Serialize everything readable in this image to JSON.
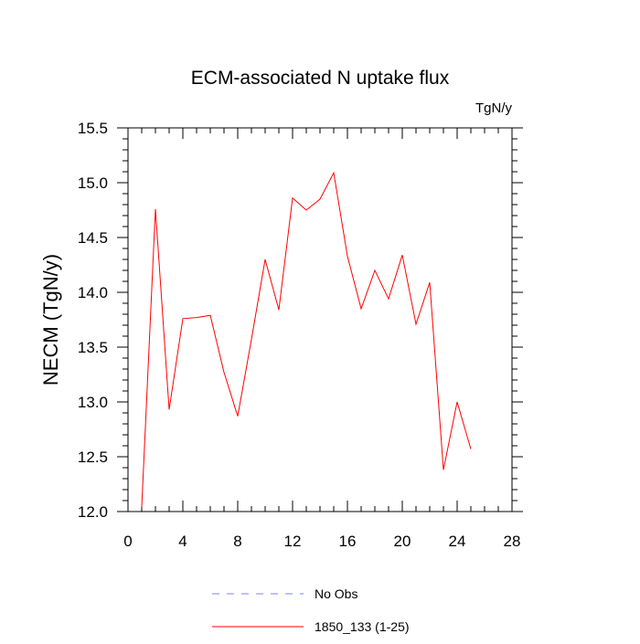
{
  "chart_data": {
    "type": "line",
    "title": "ECM-associated N uptake flux",
    "units_label": "TgN/y",
    "ylabel": "NECM  (TgN/y)",
    "xlabel": "",
    "xlim": [
      0,
      28
    ],
    "ylim": [
      12.0,
      15.5
    ],
    "x_ticks": [
      0,
      4,
      8,
      12,
      16,
      20,
      24,
      28
    ],
    "x_tick_labels": [
      "0",
      "4",
      "8",
      "12",
      "16",
      "20",
      "24",
      "28"
    ],
    "y_ticks": [
      12.0,
      12.5,
      13.0,
      13.5,
      14.0,
      14.5,
      15.0,
      15.5
    ],
    "y_tick_labels": [
      "12.0",
      "12.5",
      "13.0",
      "13.5",
      "14.0",
      "14.5",
      "15.0",
      "15.5"
    ],
    "grid": false,
    "legend_position": "bottom",
    "series": [
      {
        "name": "No Obs",
        "color": "#7f7fff",
        "dash": "dashed",
        "x": [],
        "values": []
      },
      {
        "name": "1850_133 (1-25)",
        "color": "#ff0000",
        "dash": "solid",
        "x": [
          1,
          2,
          3,
          4,
          5,
          6,
          7,
          8,
          9,
          10,
          11,
          12,
          13,
          14,
          15,
          16,
          17,
          18,
          19,
          20,
          21,
          22,
          23,
          24,
          25
        ],
        "values": [
          12.04,
          14.76,
          12.93,
          13.76,
          13.77,
          13.79,
          13.27,
          12.87,
          13.57,
          14.3,
          13.84,
          14.86,
          14.75,
          14.85,
          15.09,
          14.33,
          13.85,
          14.2,
          13.94,
          14.34,
          13.71,
          14.09,
          12.38,
          13.0,
          12.57
        ]
      }
    ]
  }
}
